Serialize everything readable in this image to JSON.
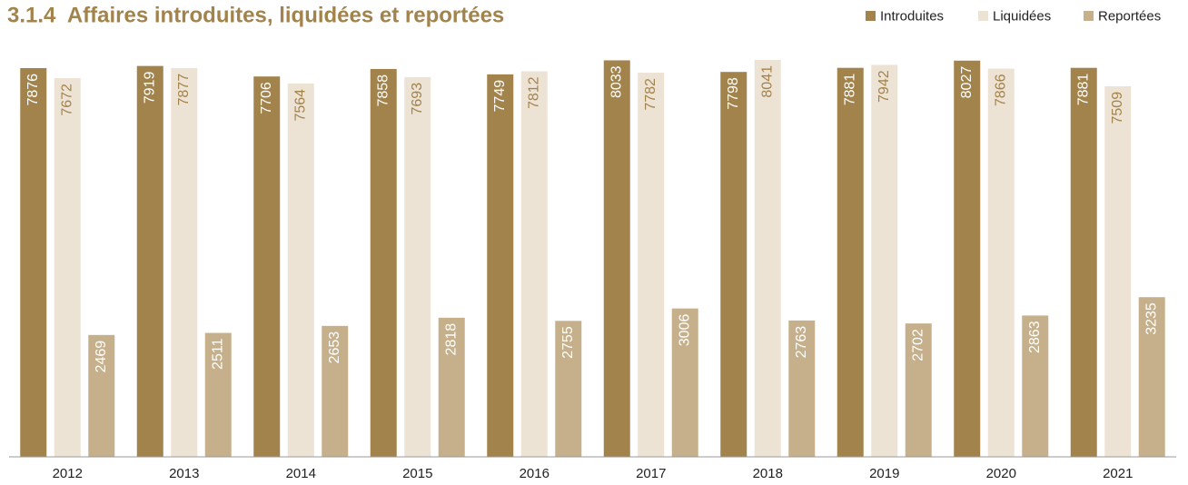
{
  "chart_data": {
    "type": "bar",
    "title": "3.1.4  Affaires introduites, liquidées et reportées",
    "categories": [
      "2012",
      "2013",
      "2014",
      "2015",
      "2016",
      "2017",
      "2018",
      "2019",
      "2020",
      "2021"
    ],
    "series": [
      {
        "name": "Introduites",
        "color": "#a3834c",
        "values": [
          7876,
          7919,
          7706,
          7858,
          7749,
          8033,
          7798,
          7881,
          8027,
          7881
        ]
      },
      {
        "name": "Liquidées",
        "color": "#ede3d5",
        "values": [
          7672,
          7877,
          7564,
          7693,
          7812,
          7782,
          8041,
          7942,
          7866,
          7509
        ]
      },
      {
        "name": "Reportées",
        "color": "#c6b08b",
        "values": [
          2469,
          2511,
          2653,
          2818,
          2755,
          3006,
          2763,
          2702,
          2863,
          3235
        ]
      }
    ],
    "legend": "top-right"
  }
}
